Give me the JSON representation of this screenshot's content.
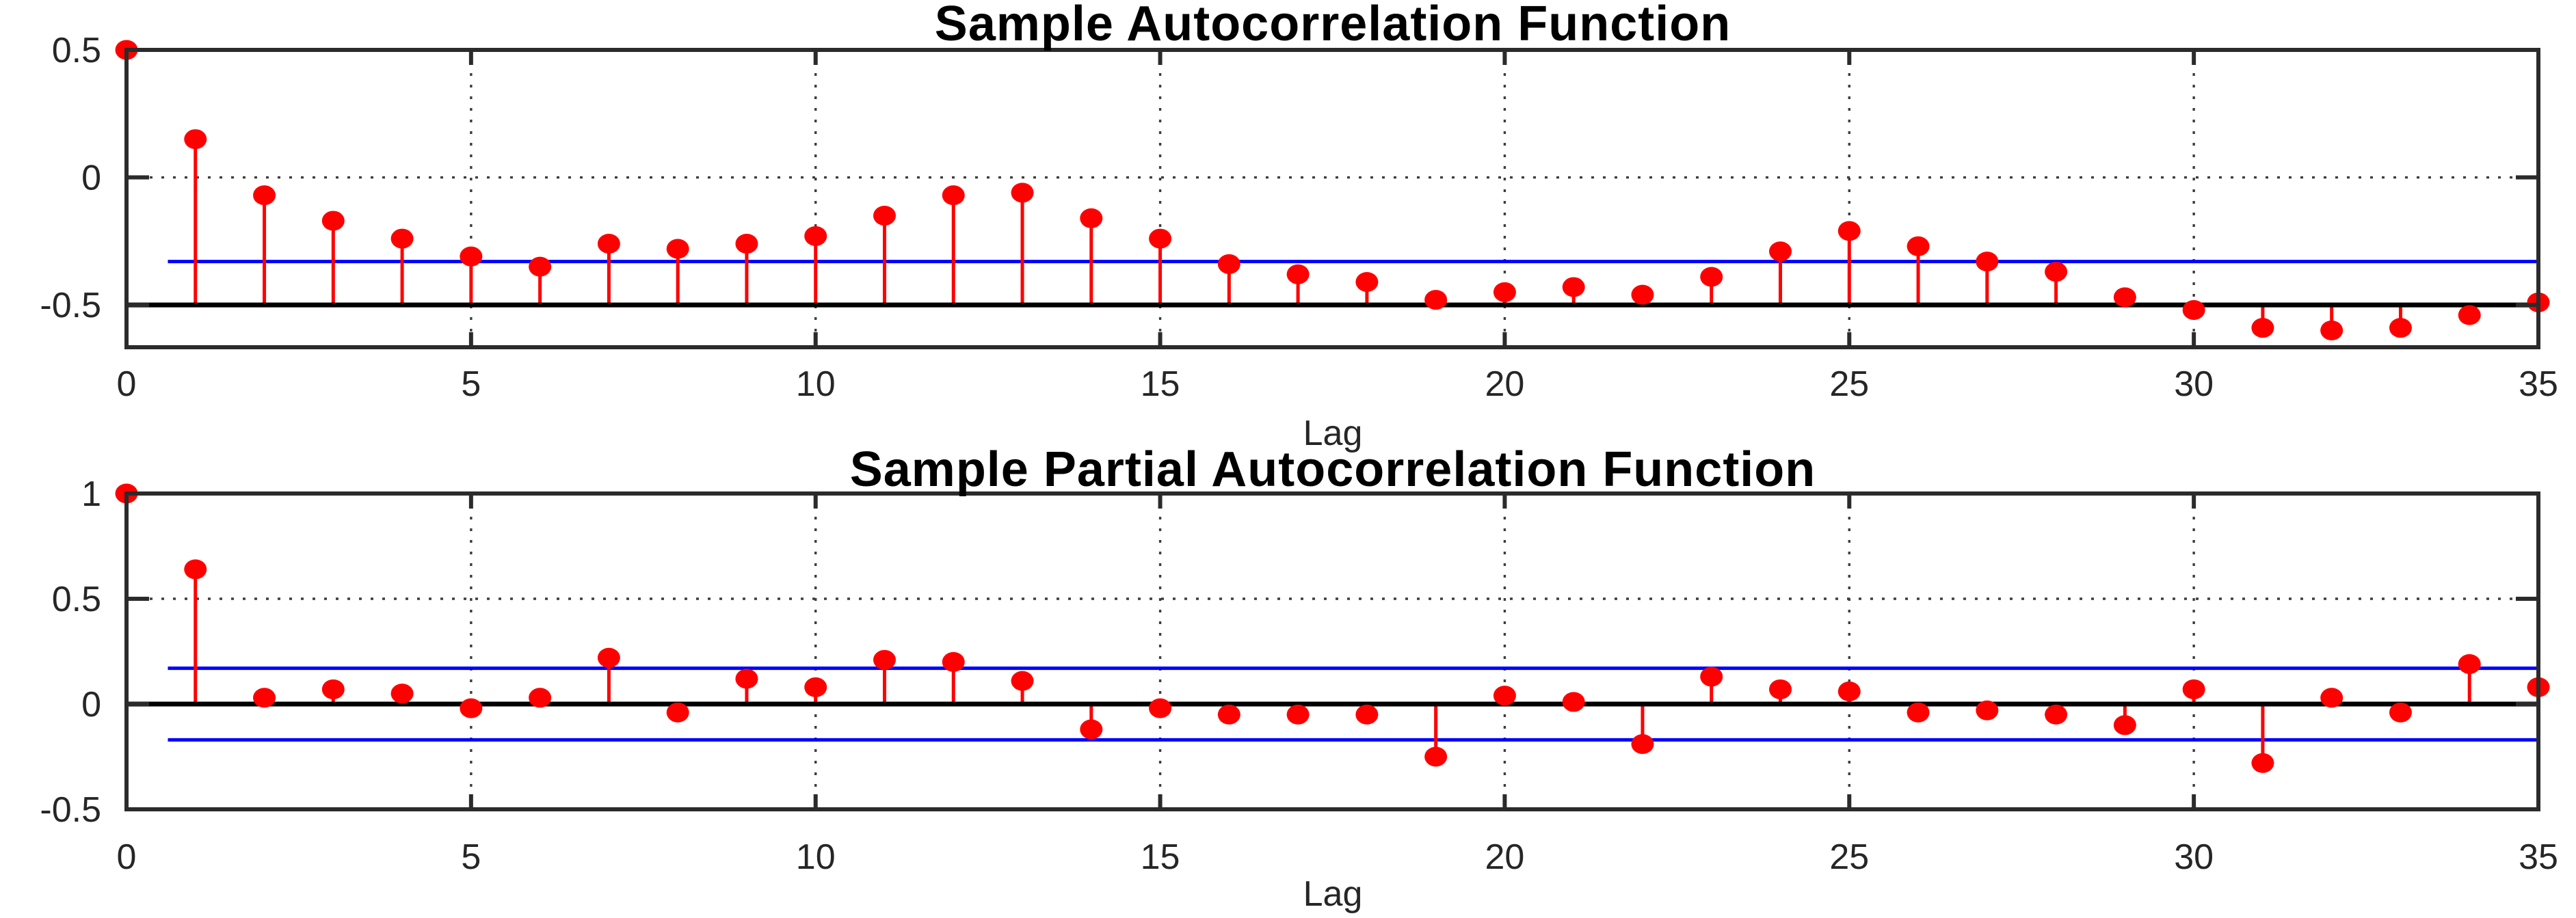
{
  "figure": {
    "background": "#ffffff",
    "kind": "MATLAB correlogram figure, two stacked stem subplots"
  },
  "colors": {
    "stem": "#ff0000",
    "marker": "#ff0000",
    "confidence_bound": "#0000ff",
    "baseline": "#000000",
    "spine": "#2b2b2b",
    "grid": "#3d3d3d",
    "text": "#262626",
    "title": "#000000"
  },
  "chart_data": [
    {
      "type": "stem",
      "title": "Sample Autocorrelation Function",
      "xlabel": "Lag",
      "ylabel": "",
      "xlim": [
        0,
        35
      ],
      "ylim": [
        -0.666,
        0.5
      ],
      "xticks": [
        0,
        5,
        10,
        15,
        20,
        25,
        30,
        35
      ],
      "xtick_labels": [
        "0",
        "5",
        "10",
        "15",
        "20",
        "25",
        "30",
        "35"
      ],
      "yticks": [
        0.5,
        0,
        -0.5
      ],
      "ytick_labels": [
        "0.5",
        "0",
        "-0.5"
      ],
      "grid": true,
      "stem_baseline": -0.5,
      "confidence_bounds": [
        -0.33
      ],
      "bounds_start_lag": 0.6,
      "lags": [
        0,
        1,
        2,
        3,
        4,
        5,
        6,
        7,
        8,
        9,
        10,
        11,
        12,
        13,
        14,
        15,
        16,
        17,
        18,
        19,
        20,
        21,
        22,
        23,
        24,
        25,
        26,
        27,
        28,
        29,
        30,
        31,
        32,
        33,
        34,
        35
      ],
      "values": [
        0.5,
        0.15,
        -0.07,
        -0.17,
        -0.24,
        -0.31,
        -0.35,
        -0.26,
        -0.28,
        -0.26,
        -0.23,
        -0.15,
        -0.07,
        -0.06,
        -0.16,
        -0.24,
        -0.34,
        -0.38,
        -0.41,
        -0.48,
        -0.45,
        -0.43,
        -0.46,
        -0.39,
        -0.29,
        -0.21,
        -0.27,
        -0.33,
        -0.37,
        -0.47,
        -0.52,
        -0.59,
        -0.6,
        -0.59,
        -0.54,
        -0.49
      ]
    },
    {
      "type": "stem",
      "title": "Sample Partial Autocorrelation Function",
      "xlabel": "Lag",
      "ylabel": "",
      "xlim": [
        0,
        35
      ],
      "ylim": [
        -0.5,
        1.0
      ],
      "xticks": [
        0,
        5,
        10,
        15,
        20,
        25,
        30,
        35
      ],
      "xtick_labels": [
        "0",
        "5",
        "10",
        "15",
        "20",
        "25",
        "30",
        "35"
      ],
      "yticks": [
        1,
        0.5,
        0,
        -0.5
      ],
      "ytick_labels": [
        "1",
        "0.5",
        "0",
        "-0.5"
      ],
      "grid": true,
      "stem_baseline": 0,
      "confidence_bounds": [
        0.17,
        -0.17
      ],
      "bounds_start_lag": 0.6,
      "lags": [
        0,
        1,
        2,
        3,
        4,
        5,
        6,
        7,
        8,
        9,
        10,
        11,
        12,
        13,
        14,
        15,
        16,
        17,
        18,
        19,
        20,
        21,
        22,
        23,
        24,
        25,
        26,
        27,
        28,
        29,
        30,
        31,
        32,
        33,
        34,
        35
      ],
      "values": [
        1.0,
        0.64,
        0.03,
        0.07,
        0.05,
        -0.02,
        0.03,
        0.22,
        -0.04,
        0.12,
        0.08,
        0.21,
        0.2,
        0.11,
        -0.12,
        -0.02,
        -0.05,
        -0.05,
        -0.05,
        -0.25,
        0.04,
        0.01,
        -0.19,
        0.13,
        0.07,
        0.06,
        -0.04,
        -0.03,
        -0.05,
        -0.1,
        0.07,
        -0.28,
        0.03,
        -0.04,
        0.19,
        0.08
      ]
    }
  ]
}
